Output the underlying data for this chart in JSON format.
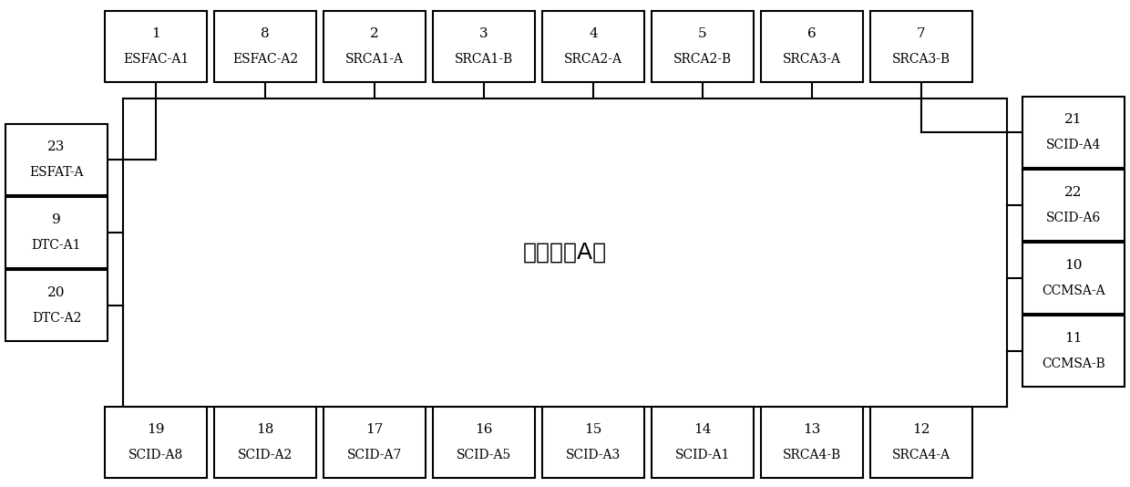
{
  "title": "安全总线A列",
  "title_fontsize": 18,
  "bg_color": "#ffffff",
  "line_color": "#000000",
  "top_boxes": [
    {
      "num": "1",
      "label": "ESFAC-A1"
    },
    {
      "num": "8",
      "label": "ESFAC-A2"
    },
    {
      "num": "2",
      "label": "SRCA1-A"
    },
    {
      "num": "3",
      "label": "SRCA1-B"
    },
    {
      "num": "4",
      "label": "SRCA2-A"
    },
    {
      "num": "5",
      "label": "SRCA2-B"
    },
    {
      "num": "6",
      "label": "SRCA3-A"
    },
    {
      "num": "7",
      "label": "SRCA3-B"
    }
  ],
  "bottom_boxes": [
    {
      "num": "19",
      "label": "SCID-A8"
    },
    {
      "num": "18",
      "label": "SCID-A2"
    },
    {
      "num": "17",
      "label": "SCID-A7"
    },
    {
      "num": "16",
      "label": "SCID-A5"
    },
    {
      "num": "15",
      "label": "SCID-A3"
    },
    {
      "num": "14",
      "label": "SCID-A1"
    },
    {
      "num": "13",
      "label": "SRCA4-B"
    },
    {
      "num": "12",
      "label": "SRCA4-A"
    }
  ],
  "left_boxes": [
    {
      "num": "23",
      "label": "ESFAT-A"
    },
    {
      "num": "9",
      "label": "DTC-A1"
    },
    {
      "num": "20",
      "label": "DTC-A2"
    }
  ],
  "right_boxes": [
    {
      "num": "21",
      "label": "SCID-A4"
    },
    {
      "num": "22",
      "label": "SCID-A6"
    },
    {
      "num": "10",
      "label": "CCMSA-A"
    },
    {
      "num": "11",
      "label": "CCMSA-B"
    }
  ]
}
